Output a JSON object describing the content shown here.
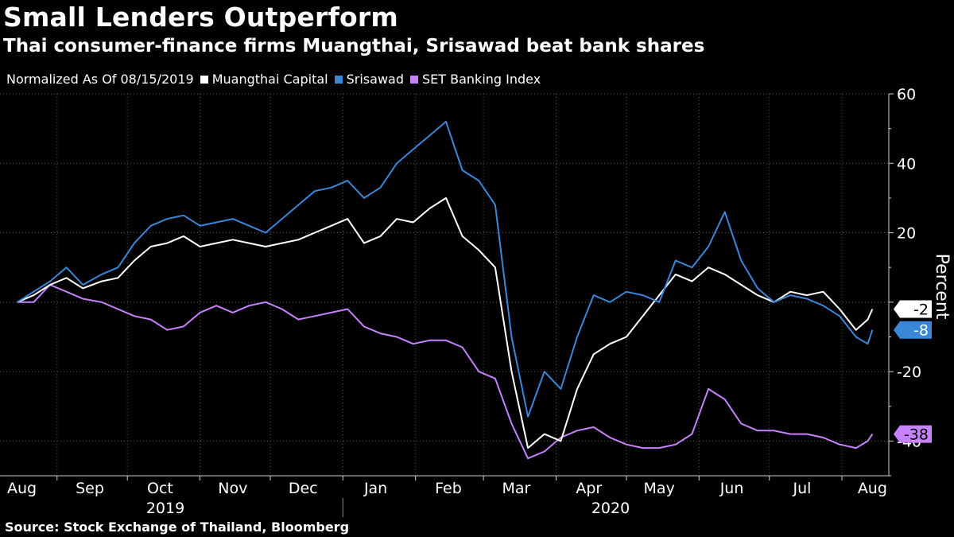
{
  "title": "Small Lenders Outperform",
  "subtitle": "Thai consumer-finance firms Muangthai, Srisawad beat bank shares",
  "legend": {
    "note": "Normalized As Of 08/15/2019",
    "items": [
      {
        "label": "Muangthai Capital",
        "color": "#ffffff"
      },
      {
        "label": "Srisawad",
        "color": "#3a87d9"
      },
      {
        "label": "SET Banking Index",
        "color": "#c782ff"
      }
    ]
  },
  "source": "Source: Stock Exchange of Thailand, Bloomberg",
  "chart_data": {
    "type": "line",
    "ylabel": "Percent",
    "ylim": [
      -50,
      60
    ],
    "yticks": [
      60,
      40,
      20,
      -20,
      -40
    ],
    "grid": true,
    "months": [
      "Aug",
      "Sep",
      "Oct",
      "Nov",
      "Dec",
      "Jan",
      "Feb",
      "Mar",
      "Apr",
      "May",
      "Jun",
      "Jul",
      "Aug"
    ],
    "years": [
      "2019",
      "2020"
    ],
    "end_labels": [
      "-2",
      "-8",
      "-38"
    ],
    "series": [
      {
        "name": "Muangthai Capital",
        "color": "#ffffff",
        "end_label": "-2",
        "points": [
          [
            "2019-08-15",
            0
          ],
          [
            "2019-08-22",
            2
          ],
          [
            "2019-08-29",
            5
          ],
          [
            "2019-09-05",
            7
          ],
          [
            "2019-09-12",
            4
          ],
          [
            "2019-09-20",
            6
          ],
          [
            "2019-09-27",
            7
          ],
          [
            "2019-10-04",
            12
          ],
          [
            "2019-10-11",
            16
          ],
          [
            "2019-10-18",
            17
          ],
          [
            "2019-10-25",
            19
          ],
          [
            "2019-11-01",
            16
          ],
          [
            "2019-11-08",
            17
          ],
          [
            "2019-11-15",
            18
          ],
          [
            "2019-11-22",
            17
          ],
          [
            "2019-11-29",
            16
          ],
          [
            "2019-12-06",
            17
          ],
          [
            "2019-12-13",
            18
          ],
          [
            "2019-12-20",
            20
          ],
          [
            "2019-12-27",
            22
          ],
          [
            "2020-01-03",
            24
          ],
          [
            "2020-01-10",
            17
          ],
          [
            "2020-01-17",
            19
          ],
          [
            "2020-01-24",
            24
          ],
          [
            "2020-01-31",
            23
          ],
          [
            "2020-02-07",
            27
          ],
          [
            "2020-02-14",
            30
          ],
          [
            "2020-02-21",
            19
          ],
          [
            "2020-02-28",
            15
          ],
          [
            "2020-03-06",
            10
          ],
          [
            "2020-03-13",
            -20
          ],
          [
            "2020-03-20",
            -42
          ],
          [
            "2020-03-27",
            -38
          ],
          [
            "2020-04-03",
            -40
          ],
          [
            "2020-04-10",
            -25
          ],
          [
            "2020-04-17",
            -15
          ],
          [
            "2020-04-24",
            -12
          ],
          [
            "2020-05-01",
            -10
          ],
          [
            "2020-05-08",
            -4
          ],
          [
            "2020-05-15",
            2
          ],
          [
            "2020-05-22",
            8
          ],
          [
            "2020-05-29",
            6
          ],
          [
            "2020-06-05",
            10
          ],
          [
            "2020-06-12",
            8
          ],
          [
            "2020-06-19",
            5
          ],
          [
            "2020-06-26",
            2
          ],
          [
            "2020-07-03",
            0
          ],
          [
            "2020-07-10",
            3
          ],
          [
            "2020-07-17",
            2
          ],
          [
            "2020-07-24",
            3
          ],
          [
            "2020-07-31",
            -2
          ],
          [
            "2020-08-07",
            -8
          ],
          [
            "2020-08-12",
            -5
          ],
          [
            "2020-08-14",
            -2
          ]
        ]
      },
      {
        "name": "Srisawad",
        "color": "#3a87d9",
        "end_label": "-8",
        "points": [
          [
            "2019-08-15",
            0
          ],
          [
            "2019-08-22",
            3
          ],
          [
            "2019-08-29",
            6
          ],
          [
            "2019-09-05",
            10
          ],
          [
            "2019-09-12",
            5
          ],
          [
            "2019-09-20",
            8
          ],
          [
            "2019-09-27",
            10
          ],
          [
            "2019-10-04",
            17
          ],
          [
            "2019-10-11",
            22
          ],
          [
            "2019-10-18",
            24
          ],
          [
            "2019-10-25",
            25
          ],
          [
            "2019-11-01",
            22
          ],
          [
            "2019-11-08",
            23
          ],
          [
            "2019-11-15",
            24
          ],
          [
            "2019-11-22",
            22
          ],
          [
            "2019-11-29",
            20
          ],
          [
            "2019-12-06",
            24
          ],
          [
            "2019-12-13",
            28
          ],
          [
            "2019-12-20",
            32
          ],
          [
            "2019-12-27",
            33
          ],
          [
            "2020-01-03",
            35
          ],
          [
            "2020-01-10",
            30
          ],
          [
            "2020-01-17",
            33
          ],
          [
            "2020-01-24",
            40
          ],
          [
            "2020-01-31",
            44
          ],
          [
            "2020-02-07",
            48
          ],
          [
            "2020-02-14",
            52
          ],
          [
            "2020-02-21",
            38
          ],
          [
            "2020-02-28",
            35
          ],
          [
            "2020-03-06",
            28
          ],
          [
            "2020-03-13",
            -10
          ],
          [
            "2020-03-20",
            -33
          ],
          [
            "2020-03-27",
            -20
          ],
          [
            "2020-04-03",
            -25
          ],
          [
            "2020-04-10",
            -10
          ],
          [
            "2020-04-17",
            2
          ],
          [
            "2020-04-24",
            0
          ],
          [
            "2020-05-01",
            3
          ],
          [
            "2020-05-08",
            2
          ],
          [
            "2020-05-15",
            0
          ],
          [
            "2020-05-22",
            12
          ],
          [
            "2020-05-29",
            10
          ],
          [
            "2020-06-05",
            16
          ],
          [
            "2020-06-12",
            26
          ],
          [
            "2020-06-19",
            12
          ],
          [
            "2020-06-26",
            4
          ],
          [
            "2020-07-03",
            0
          ],
          [
            "2020-07-10",
            2
          ],
          [
            "2020-07-17",
            1
          ],
          [
            "2020-07-24",
            -1
          ],
          [
            "2020-07-31",
            -4
          ],
          [
            "2020-08-07",
            -10
          ],
          [
            "2020-08-12",
            -12
          ],
          [
            "2020-08-14",
            -8
          ]
        ]
      },
      {
        "name": "SET Banking Index",
        "color": "#c782ff",
        "end_label": "-38",
        "points": [
          [
            "2019-08-15",
            0
          ],
          [
            "2019-08-22",
            0
          ],
          [
            "2019-08-29",
            5
          ],
          [
            "2019-09-05",
            3
          ],
          [
            "2019-09-12",
            1
          ],
          [
            "2019-09-20",
            0
          ],
          [
            "2019-09-27",
            -2
          ],
          [
            "2019-10-04",
            -4
          ],
          [
            "2019-10-11",
            -5
          ],
          [
            "2019-10-18",
            -8
          ],
          [
            "2019-10-25",
            -7
          ],
          [
            "2019-11-01",
            -3
          ],
          [
            "2019-11-08",
            -1
          ],
          [
            "2019-11-15",
            -3
          ],
          [
            "2019-11-22",
            -1
          ],
          [
            "2019-11-29",
            0
          ],
          [
            "2019-12-06",
            -2
          ],
          [
            "2019-12-13",
            -5
          ],
          [
            "2019-12-20",
            -4
          ],
          [
            "2019-12-27",
            -3
          ],
          [
            "2020-01-03",
            -2
          ],
          [
            "2020-01-10",
            -7
          ],
          [
            "2020-01-17",
            -9
          ],
          [
            "2020-01-24",
            -10
          ],
          [
            "2020-01-31",
            -12
          ],
          [
            "2020-02-07",
            -11
          ],
          [
            "2020-02-14",
            -11
          ],
          [
            "2020-02-21",
            -13
          ],
          [
            "2020-02-28",
            -20
          ],
          [
            "2020-03-06",
            -22
          ],
          [
            "2020-03-13",
            -35
          ],
          [
            "2020-03-20",
            -45
          ],
          [
            "2020-03-27",
            -43
          ],
          [
            "2020-04-03",
            -39
          ],
          [
            "2020-04-10",
            -37
          ],
          [
            "2020-04-17",
            -36
          ],
          [
            "2020-04-24",
            -39
          ],
          [
            "2020-05-01",
            -41
          ],
          [
            "2020-05-08",
            -42
          ],
          [
            "2020-05-15",
            -42
          ],
          [
            "2020-05-22",
            -41
          ],
          [
            "2020-05-29",
            -38
          ],
          [
            "2020-06-05",
            -25
          ],
          [
            "2020-06-12",
            -28
          ],
          [
            "2020-06-19",
            -35
          ],
          [
            "2020-06-26",
            -37
          ],
          [
            "2020-07-03",
            -37
          ],
          [
            "2020-07-10",
            -38
          ],
          [
            "2020-07-17",
            -38
          ],
          [
            "2020-07-24",
            -39
          ],
          [
            "2020-07-31",
            -41
          ],
          [
            "2020-08-07",
            -42
          ],
          [
            "2020-08-12",
            -40
          ],
          [
            "2020-08-14",
            -38
          ]
        ]
      }
    ]
  }
}
